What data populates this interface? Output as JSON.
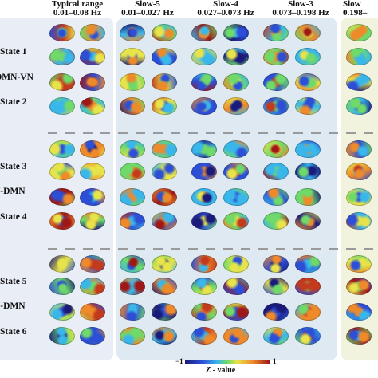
{
  "bands": [
    {
      "title": "Typical range",
      "range": "0.01–0.08 Hz"
    },
    {
      "title": "Slow-5",
      "range": "0.01–0.027 Hz"
    },
    {
      "title": "Slow-4",
      "range": "0.027–0.073 Hz"
    },
    {
      "title": "Slow-3",
      "range": "0.073–0.198 Hz"
    },
    {
      "title": "Slow",
      "range": "0.198–"
    }
  ],
  "row_labels": [
    "State 1",
    "DMN-VN",
    "State 2",
    "State 3",
    "N-DMN",
    "State 4",
    "State 5",
    "N-DMN",
    "State 6"
  ],
  "colorbar": {
    "min_label": "−1",
    "max_label": "1",
    "title_var": "Z",
    "title_suffix": " - value"
  },
  "colors": {
    "panel_left": "#e9edf6",
    "panel_mid": "#dfe9f2",
    "panel_right": "#f2f3df",
    "low": "#1a1a7a",
    "mid": "#6fd96a",
    "high": "#9e1818"
  }
}
